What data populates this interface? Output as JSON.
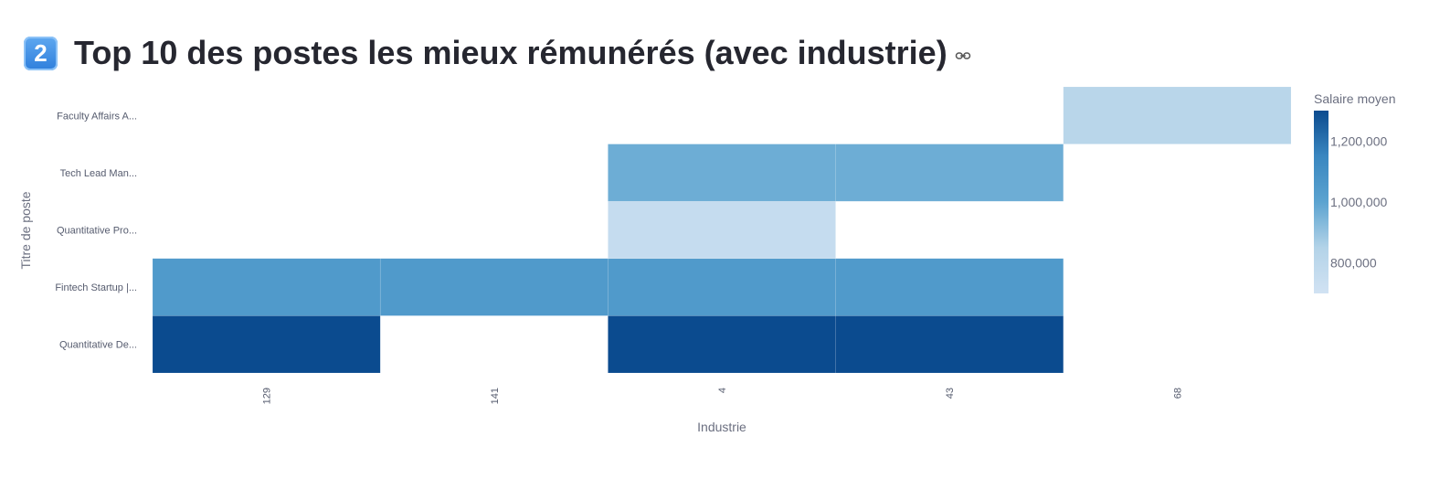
{
  "header": {
    "badge_label": "2",
    "title": "Top 10 des postes les mieux rémunérés (avec industrie)",
    "link_icon": "link-icon"
  },
  "chart_data": {
    "type": "heatmap",
    "xlabel": "Industrie",
    "ylabel": "Titre de poste",
    "x_categories": [
      "129",
      "141",
      "4",
      "43",
      "68"
    ],
    "y_categories": [
      "Quantitative De...",
      "Fintech Startup |...",
      "Quantitative Pro...",
      "Tech Lead Man...",
      "Faculty Affairs A..."
    ],
    "z": [
      [
        1300000,
        null,
        1300000,
        1300000,
        null
      ],
      [
        1050000,
        1050000,
        1050000,
        1050000,
        null
      ],
      [
        null,
        null,
        760000,
        null,
        null
      ],
      [
        null,
        null,
        970000,
        970000,
        null
      ],
      [
        null,
        null,
        null,
        null,
        820000
      ]
    ],
    "colorbar": {
      "title": "Salaire moyen",
      "range": [
        700000,
        1300000
      ],
      "ticks": [
        800000,
        1000000,
        1200000
      ],
      "tick_labels": [
        "800,000",
        "1,000,000",
        "1,200,000"
      ],
      "colorscale": [
        "#d1e2f3",
        "#b3d3e8",
        "#5ba3d0",
        "#3a87c0",
        "#0b4b8f"
      ]
    }
  }
}
